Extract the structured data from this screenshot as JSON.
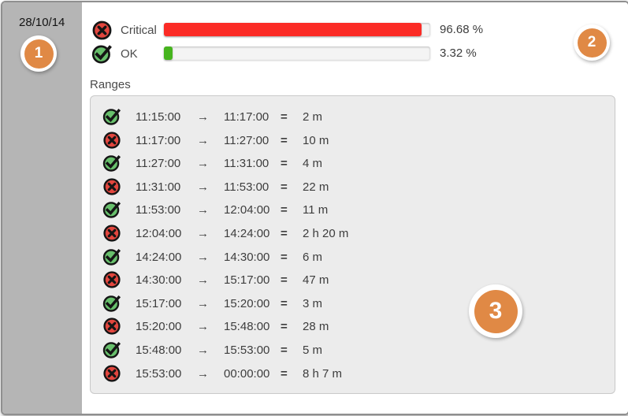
{
  "sidebar": {
    "date": "28/10/14"
  },
  "badges": [
    {
      "label": "1"
    },
    {
      "label": "2"
    },
    {
      "label": "3"
    }
  ],
  "legend": {
    "rows": [
      {
        "status": "critical",
        "label": "Critical",
        "percent": 96.68,
        "percent_label": "96.68 %"
      },
      {
        "status": "ok",
        "label": "OK",
        "percent": 3.32,
        "percent_label": "3.32 %"
      }
    ]
  },
  "ranges": {
    "title": "Ranges",
    "separators": {
      "arrow": "→",
      "equals": "="
    },
    "rows": [
      {
        "status": "ok",
        "start": "11:15:00",
        "end": "11:17:00",
        "duration": "2 m"
      },
      {
        "status": "critical",
        "start": "11:17:00",
        "end": "11:27:00",
        "duration": "10 m"
      },
      {
        "status": "ok",
        "start": "11:27:00",
        "end": "11:31:00",
        "duration": "4 m"
      },
      {
        "status": "critical",
        "start": "11:31:00",
        "end": "11:53:00",
        "duration": "22 m"
      },
      {
        "status": "ok",
        "start": "11:53:00",
        "end": "12:04:00",
        "duration": "11 m"
      },
      {
        "status": "critical",
        "start": "12:04:00",
        "end": "14:24:00",
        "duration": "2 h 20 m"
      },
      {
        "status": "ok",
        "start": "14:24:00",
        "end": "14:30:00",
        "duration": "6 m"
      },
      {
        "status": "critical",
        "start": "14:30:00",
        "end": "15:17:00",
        "duration": "47 m"
      },
      {
        "status": "ok",
        "start": "15:17:00",
        "end": "15:20:00",
        "duration": "3 m"
      },
      {
        "status": "critical",
        "start": "15:20:00",
        "end": "15:48:00",
        "duration": "28 m"
      },
      {
        "status": "ok",
        "start": "15:48:00",
        "end": "15:53:00",
        "duration": "5 m"
      },
      {
        "status": "critical",
        "start": "15:53:00",
        "end": "00:00:00",
        "duration": "8 h 7 m"
      }
    ]
  },
  "colors": {
    "badge_orange": "#e08945",
    "critical_bar": "#fb2b25",
    "ok_bar": "#46b41e",
    "icon_red": "#e2463e",
    "icon_green": "#68c06c",
    "sidebar_gray": "#b5b5b5",
    "panel_gray": "#ececec"
  }
}
